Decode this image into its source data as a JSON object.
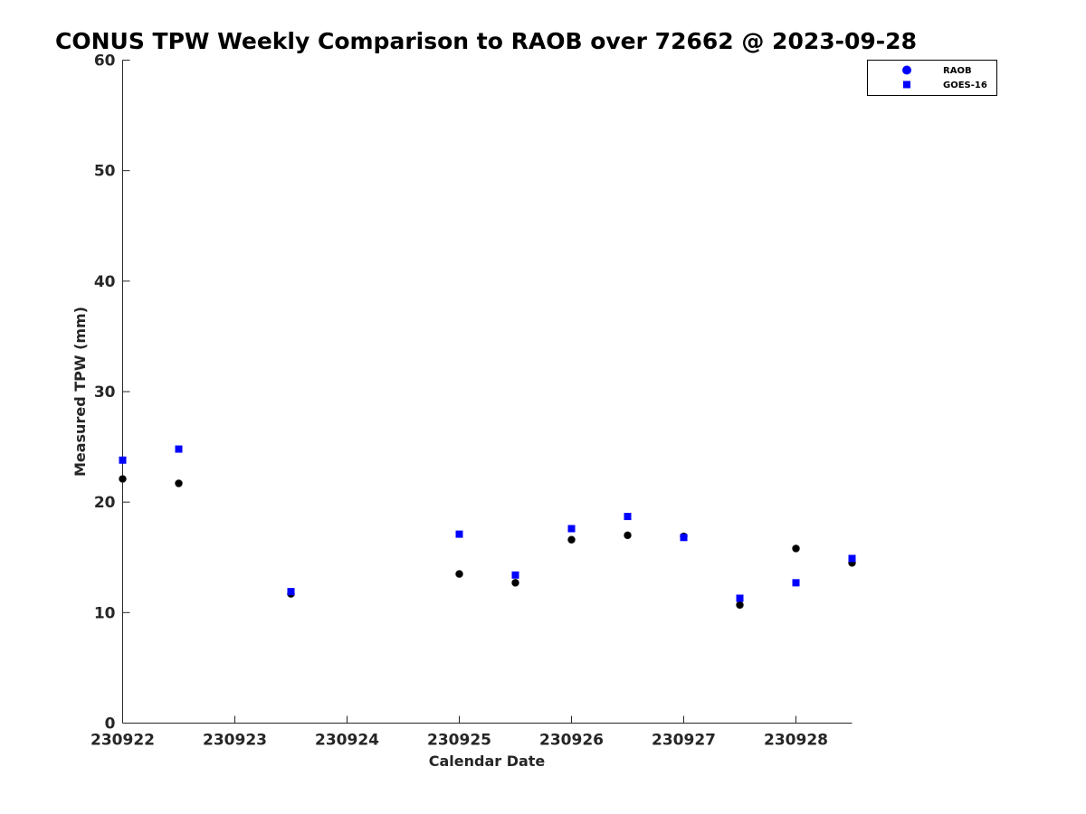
{
  "chart_data": {
    "type": "scatter",
    "title": "CONUS TPW Weekly Comparison to RAOB over 72662 @ 2023-09-28",
    "xlabel": "Calendar Date",
    "ylabel": "Measured TPW (mm)",
    "x_tick_labels": [
      "230922",
      "230923",
      "230924",
      "230925",
      "230926",
      "230927",
      "230928"
    ],
    "xlim": [
      "230922 00Z",
      "230928 12Z"
    ],
    "ylim": [
      0,
      60
    ],
    "y_ticks": [
      0,
      10,
      20,
      30,
      40,
      50,
      60
    ],
    "grid": false,
    "legend_position": "top-right",
    "x": [
      "230922 00Z",
      "230922 12Z",
      "230923 12Z",
      "230925 00Z",
      "230925 12Z",
      "230926 00Z",
      "230926 12Z",
      "230927 00Z",
      "230927 12Z",
      "230928 00Z",
      "230928 12Z"
    ],
    "series": [
      {
        "name": "RAOB",
        "marker": "circle",
        "color": "#000000",
        "legend_color": "#0000ff",
        "values": [
          22.1,
          21.7,
          11.7,
          13.5,
          12.7,
          16.6,
          17.0,
          16.9,
          10.7,
          15.8,
          14.5
        ]
      },
      {
        "name": "GOES-16",
        "marker": "square",
        "color": "#0000ff",
        "values": [
          23.8,
          24.8,
          11.9,
          17.1,
          13.4,
          17.6,
          18.7,
          16.8,
          11.3,
          12.7,
          14.9
        ]
      }
    ]
  }
}
